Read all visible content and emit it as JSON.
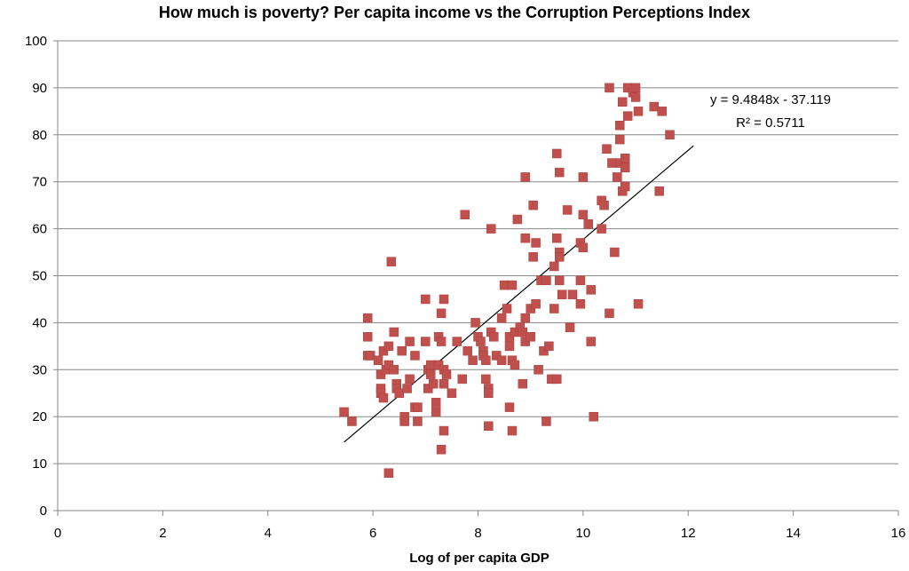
{
  "chart_data": {
    "type": "scatter",
    "title": "How much is poverty? Per capita income vs the Corruption Perceptions Index",
    "xlabel": "Log of per capita GDP",
    "ylabel": "",
    "xlim": [
      0,
      16
    ],
    "ylim": [
      0,
      100
    ],
    "x_ticks": [
      0,
      2,
      4,
      6,
      8,
      10,
      12,
      14,
      16
    ],
    "y_ticks": [
      0,
      10,
      20,
      30,
      40,
      50,
      60,
      70,
      80,
      90,
      100
    ],
    "grid": "horizontal",
    "marker_color": "#c0504d",
    "trendline": {
      "slope": 9.4848,
      "intercept": -37.119,
      "x_range": [
        5.45,
        12.1
      ],
      "equation": "y = 9.4848x - 37.119",
      "r_squared": "R² = 0.5711",
      "color": "#000000"
    },
    "points": [
      [
        5.45,
        21
      ],
      [
        5.6,
        19
      ],
      [
        5.9,
        41
      ],
      [
        5.9,
        37
      ],
      [
        5.9,
        33
      ],
      [
        5.95,
        33
      ],
      [
        6.1,
        32
      ],
      [
        6.15,
        29
      ],
      [
        6.15,
        26
      ],
      [
        6.15,
        25
      ],
      [
        6.2,
        24
      ],
      [
        6.2,
        34
      ],
      [
        6.25,
        30
      ],
      [
        6.3,
        35
      ],
      [
        6.3,
        31
      ],
      [
        6.3,
        8
      ],
      [
        6.35,
        53
      ],
      [
        6.4,
        38
      ],
      [
        6.4,
        30
      ],
      [
        6.45,
        27
      ],
      [
        6.45,
        26
      ],
      [
        6.5,
        25
      ],
      [
        6.55,
        34
      ],
      [
        6.6,
        20
      ],
      [
        6.6,
        19
      ],
      [
        6.65,
        26
      ],
      [
        6.7,
        36
      ],
      [
        6.7,
        28
      ],
      [
        6.8,
        33
      ],
      [
        6.8,
        22
      ],
      [
        6.85,
        22
      ],
      [
        6.85,
        19
      ],
      [
        7.0,
        45
      ],
      [
        7.0,
        36
      ],
      [
        7.05,
        30
      ],
      [
        7.05,
        26
      ],
      [
        7.1,
        31
      ],
      [
        7.1,
        29
      ],
      [
        7.15,
        27
      ],
      [
        7.2,
        23
      ],
      [
        7.2,
        21
      ],
      [
        7.25,
        37
      ],
      [
        7.25,
        31
      ],
      [
        7.3,
        42
      ],
      [
        7.3,
        36
      ],
      [
        7.3,
        13
      ],
      [
        7.35,
        45
      ],
      [
        7.35,
        30
      ],
      [
        7.35,
        27
      ],
      [
        7.35,
        17
      ],
      [
        7.4,
        29
      ],
      [
        7.5,
        25
      ],
      [
        7.6,
        36
      ],
      [
        7.7,
        28
      ],
      [
        7.75,
        63
      ],
      [
        7.8,
        34
      ],
      [
        7.9,
        32
      ],
      [
        7.95,
        40
      ],
      [
        8.0,
        37
      ],
      [
        8.05,
        36
      ],
      [
        8.1,
        34
      ],
      [
        8.1,
        33
      ],
      [
        8.15,
        32
      ],
      [
        8.15,
        28
      ],
      [
        8.2,
        26
      ],
      [
        8.2,
        25
      ],
      [
        8.2,
        18
      ],
      [
        8.25,
        60
      ],
      [
        8.25,
        38
      ],
      [
        8.3,
        37
      ],
      [
        8.35,
        33
      ],
      [
        8.45,
        41
      ],
      [
        8.45,
        32
      ],
      [
        8.5,
        48
      ],
      [
        8.55,
        43
      ],
      [
        8.6,
        37
      ],
      [
        8.6,
        35
      ],
      [
        8.6,
        22
      ],
      [
        8.65,
        48
      ],
      [
        8.65,
        32
      ],
      [
        8.65,
        17
      ],
      [
        8.7,
        38
      ],
      [
        8.7,
        31
      ],
      [
        8.75,
        62
      ],
      [
        8.8,
        39
      ],
      [
        8.85,
        38
      ],
      [
        8.85,
        27
      ],
      [
        8.9,
        71
      ],
      [
        8.9,
        58
      ],
      [
        8.9,
        41
      ],
      [
        8.9,
        36
      ],
      [
        9.0,
        43
      ],
      [
        9.0,
        37
      ],
      [
        9.05,
        65
      ],
      [
        9.05,
        54
      ],
      [
        9.1,
        57
      ],
      [
        9.1,
        44
      ],
      [
        9.15,
        30
      ],
      [
        9.2,
        49
      ],
      [
        9.25,
        34
      ],
      [
        9.3,
        49
      ],
      [
        9.3,
        19
      ],
      [
        9.35,
        35
      ],
      [
        9.4,
        28
      ],
      [
        9.45,
        52
      ],
      [
        9.45,
        43
      ],
      [
        9.5,
        76
      ],
      [
        9.5,
        58
      ],
      [
        9.5,
        28
      ],
      [
        9.55,
        55
      ],
      [
        9.55,
        54
      ],
      [
        9.55,
        49
      ],
      [
        9.55,
        72
      ],
      [
        9.6,
        46
      ],
      [
        9.7,
        64
      ],
      [
        9.75,
        39
      ],
      [
        9.8,
        46
      ],
      [
        9.95,
        57
      ],
      [
        9.95,
        49
      ],
      [
        9.95,
        44
      ],
      [
        10.0,
        71
      ],
      [
        10.0,
        63
      ],
      [
        10.0,
        56
      ],
      [
        10.1,
        61
      ],
      [
        10.15,
        47
      ],
      [
        10.15,
        36
      ],
      [
        10.2,
        20
      ],
      [
        10.35,
        66
      ],
      [
        10.35,
        60
      ],
      [
        10.4,
        65
      ],
      [
        10.45,
        77
      ],
      [
        10.5,
        90
      ],
      [
        10.5,
        42
      ],
      [
        10.55,
        74
      ],
      [
        10.6,
        55
      ],
      [
        10.65,
        71
      ],
      [
        10.7,
        82
      ],
      [
        10.7,
        79
      ],
      [
        10.7,
        74
      ],
      [
        10.75,
        87
      ],
      [
        10.75,
        68
      ],
      [
        10.8,
        75
      ],
      [
        10.8,
        73
      ],
      [
        10.8,
        69
      ],
      [
        10.85,
        90
      ],
      [
        10.85,
        84
      ],
      [
        10.95,
        89
      ],
      [
        11.0,
        90
      ],
      [
        11.0,
        88
      ],
      [
        11.05,
        85
      ],
      [
        11.05,
        44
      ],
      [
        11.35,
        86
      ],
      [
        11.45,
        68
      ],
      [
        11.5,
        85
      ],
      [
        11.65,
        80
      ]
    ]
  }
}
